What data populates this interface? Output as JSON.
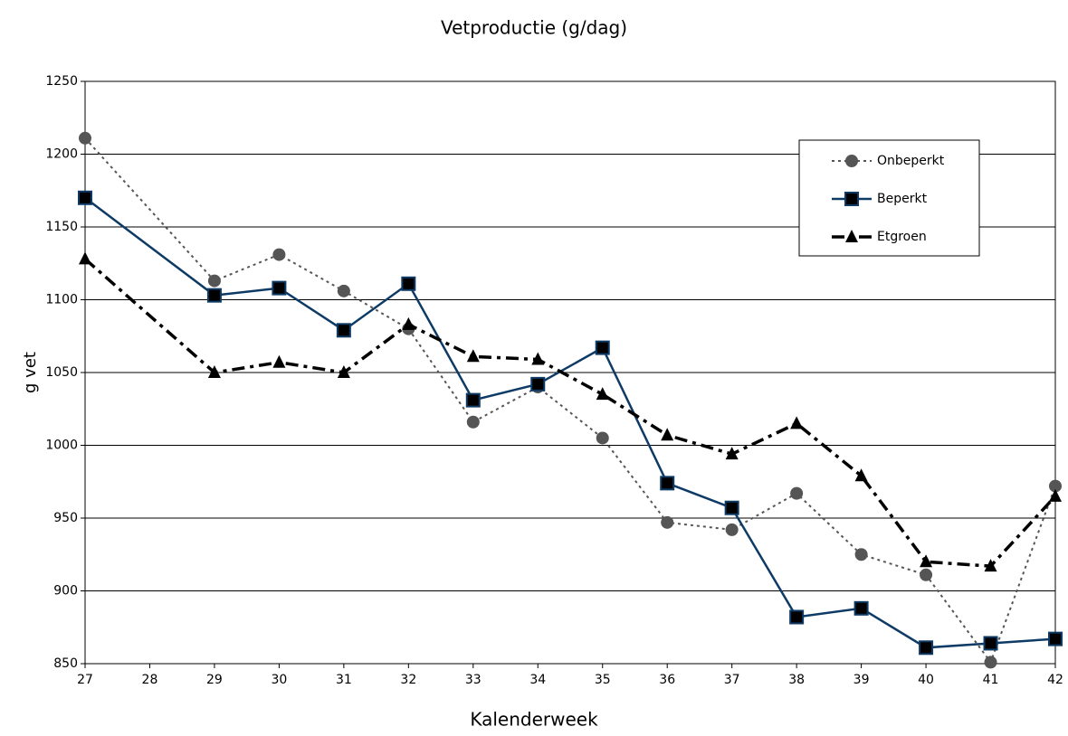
{
  "chart_data": {
    "type": "line",
    "title": "Vetproductie (g/dag)",
    "x_label": "Kalenderweek",
    "y_label": "g vet",
    "x": [
      27,
      29,
      30,
      31,
      32,
      33,
      34,
      35,
      36,
      37,
      38,
      39,
      40,
      41,
      42
    ],
    "xlim": [
      27,
      42
    ],
    "xticks": [
      27,
      28,
      29,
      30,
      31,
      32,
      33,
      34,
      35,
      36,
      37,
      38,
      39,
      40,
      41,
      42
    ],
    "ylim": [
      850,
      1250
    ],
    "yticks": [
      850,
      900,
      950,
      1000,
      1050,
      1100,
      1150,
      1200,
      1250
    ],
    "grid": true,
    "legend": "upper right",
    "series": [
      {
        "name": "Onbeperkt",
        "color": "#555555",
        "dash": "dotted",
        "marker": "circle",
        "values": [
          1211,
          1113,
          1131,
          1106,
          1080,
          1016,
          1040,
          1005,
          947,
          942,
          967,
          925,
          911,
          851,
          972
        ]
      },
      {
        "name": "Beperkt",
        "color": "#0e3a66",
        "dash": "solid",
        "marker": "square",
        "values": [
          1170,
          1103,
          1108,
          1079,
          1111,
          1031,
          1042,
          1067,
          974,
          957,
          882,
          888,
          861,
          864,
          867
        ]
      },
      {
        "name": "Etgroen",
        "color": "#000000",
        "dash": "dashdot",
        "marker": "triangle",
        "values": [
          1128,
          1050,
          1057,
          1050,
          1083,
          1061,
          1059,
          1035,
          1007,
          994,
          1015,
          979,
          920,
          917,
          965
        ]
      }
    ]
  }
}
